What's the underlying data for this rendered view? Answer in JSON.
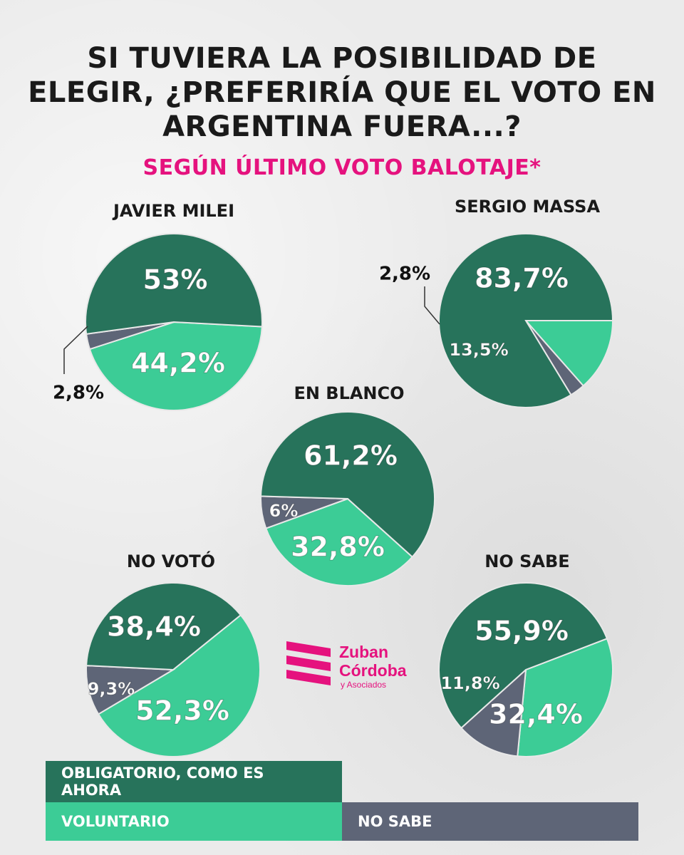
{
  "title_lines": [
    "SI TUVIERA LA POSIBILIDAD DE",
    "ELEGIR, ¿PREFERIRÍA QUE EL VOTO EN",
    "ARGENTINA FUERA...?"
  ],
  "subtitle": "SEGÚN ÚLTIMO VOTO BALOTAJE*",
  "colors": {
    "obligatorio": "#27735b",
    "voluntario": "#3ccc96",
    "no_sabe": "#5e6577",
    "accent": "#e5127e"
  },
  "chart_data": [
    {
      "type": "pie",
      "title": "JAVIER MILEI",
      "categories": [
        "OBLIGATORIO, COMO ES AHORA",
        "VOLUNTARIO",
        "NO SABE"
      ],
      "values": [
        53,
        44.2,
        2.8
      ],
      "labels": [
        "53%",
        "44,2%",
        "2,8%"
      ]
    },
    {
      "type": "pie",
      "title": "SERGIO MASSA",
      "categories": [
        "OBLIGATORIO, COMO ES AHORA",
        "VOLUNTARIO",
        "NO SABE"
      ],
      "values": [
        83.7,
        13.5,
        2.8
      ],
      "labels": [
        "83,7%",
        "13,5%",
        "2,8%"
      ]
    },
    {
      "type": "pie",
      "title": "EN BLANCO",
      "categories": [
        "OBLIGATORIO, COMO ES AHORA",
        "VOLUNTARIO",
        "NO SABE"
      ],
      "values": [
        61.2,
        32.8,
        6
      ],
      "labels": [
        "61,2%",
        "32,8%",
        "6%"
      ]
    },
    {
      "type": "pie",
      "title": "NO VOTÓ",
      "categories": [
        "OBLIGATORIO, COMO ES AHORA",
        "VOLUNTARIO",
        "NO SABE"
      ],
      "values": [
        38.4,
        52.3,
        9.3
      ],
      "labels": [
        "38,4%",
        "52,3%",
        "9,3%"
      ]
    },
    {
      "type": "pie",
      "title": "NO SABE",
      "categories": [
        "OBLIGATORIO, COMO ES AHORA",
        "VOLUNTARIO",
        "NO SABE"
      ],
      "values": [
        55.9,
        32.4,
        11.8
      ],
      "labels": [
        "55,9%",
        "32,4%",
        "11,8%"
      ]
    }
  ],
  "legend": {
    "obligatorio": "OBLIGATORIO, COMO ES AHORA",
    "voluntario": "VOLUNTARIO",
    "no_sabe": "NO SABE"
  },
  "logo": {
    "name_line1": "Zuban",
    "name_line2": "Córdoba",
    "sub": "y Asociados"
  }
}
